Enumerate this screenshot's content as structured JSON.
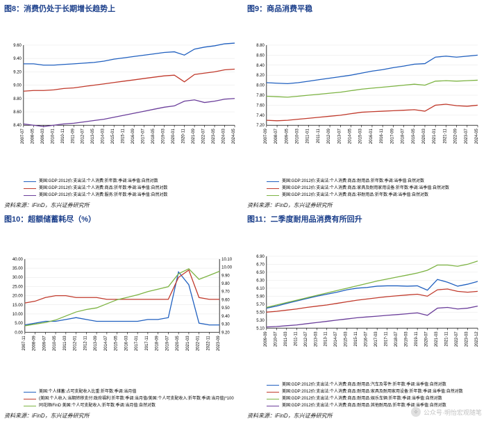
{
  "source_label": "资料来源：iFinD，东兴证券研究所",
  "watermark": "公众号·明怡宏观随笔",
  "axis_color": "#000000",
  "grid_color": "#e6e6e6",
  "tick_font_size": 6,
  "title_color": "#1b3f8b",
  "fig8": {
    "title": "图8：消费仍处于长期增长趋势上",
    "type": "line",
    "ylim": [
      8.4,
      9.6
    ],
    "ytick_step": 0.2,
    "x_labels": [
      "2007-07",
      "2008-05",
      "2009-03",
      "2010-01",
      "2010-11",
      "2011-09",
      "2012-07",
      "2013-05",
      "2014-03",
      "2015-01",
      "2015-11",
      "2016-09",
      "2017-07",
      "2018-05",
      "2019-03",
      "2020-01",
      "2020-11",
      "2021-09",
      "2022-07",
      "2023-05",
      "2024-03",
      "2024-05"
    ],
    "series": [
      {
        "name": "美国:GDP:2012价:支出法:个人消费:折年数:季调:当季值:自然对数",
        "color": "#1f5fbf",
        "y": [
          9.32,
          9.32,
          9.3,
          9.3,
          9.31,
          9.32,
          9.33,
          9.34,
          9.36,
          9.39,
          9.41,
          9.43,
          9.45,
          9.47,
          9.49,
          9.5,
          9.45,
          9.54,
          9.57,
          9.59,
          9.62,
          9.63
        ]
      },
      {
        "name": "美国:GDP:2012价:支出法:个人消费:商品:折年数:季调:当季值:自然对数",
        "color": "#c0392b",
        "y": [
          8.91,
          8.92,
          8.92,
          8.93,
          8.95,
          8.96,
          8.98,
          9.0,
          9.02,
          9.04,
          9.06,
          9.08,
          9.1,
          9.12,
          9.14,
          9.15,
          9.05,
          9.16,
          9.18,
          9.2,
          9.23,
          9.24
        ]
      },
      {
        "name": "美国:GDP:2012价:支出法:个人消费:服务:折年数:季调:当季值:自然对数",
        "color": "#6a3d9a",
        "y": [
          8.42,
          8.4,
          8.38,
          8.4,
          8.42,
          8.43,
          8.45,
          8.47,
          8.49,
          8.52,
          8.55,
          8.58,
          8.61,
          8.64,
          8.67,
          8.69,
          8.76,
          8.78,
          8.74,
          8.76,
          8.79,
          8.8
        ]
      }
    ]
  },
  "fig9": {
    "title": "图9：商品消费平稳",
    "type": "line",
    "ylim": [
      7.2,
      8.8
    ],
    "ytick_step": 0.2,
    "x_labels": [
      "2007-09",
      "2008-07",
      "2009-05",
      "2010-03",
      "2011-01",
      "2011-11",
      "2012-09",
      "2013-07",
      "2014-05",
      "2015-03",
      "2016-01",
      "2016-11",
      "2017-09",
      "2018-07",
      "2019-05",
      "2020-03",
      "2021-01",
      "2021-11",
      "2022-09",
      "2023-07",
      "2024-05"
    ],
    "series": [
      {
        "name": "美国:GDP:2012价:支出法:个人消费:商品:耐用品:折年数:季调:当季值:自然对数",
        "color": "#1f5fbf",
        "y": [
          8.05,
          8.04,
          8.03,
          8.05,
          8.08,
          8.11,
          8.14,
          8.17,
          8.2,
          8.24,
          8.28,
          8.31,
          8.35,
          8.38,
          8.42,
          8.43,
          8.56,
          8.58,
          8.56,
          8.58,
          8.6
        ]
      },
      {
        "name": "美国:GDP:2012价:支出法:个人消费:商品:家具及耐用家用设备:折年数:季调:当季值:自然对数",
        "color": "#c0392b",
        "y": [
          7.3,
          7.29,
          7.3,
          7.32,
          7.34,
          7.36,
          7.38,
          7.4,
          7.43,
          7.46,
          7.47,
          7.48,
          7.49,
          7.5,
          7.51,
          7.48,
          7.6,
          7.62,
          7.59,
          7.58,
          7.6
        ]
      },
      {
        "name": "美国:GDP:2012价:支出法:个人消费:商品:非耐用品:折年数:季调:当季值:自然对数",
        "color": "#7cb342",
        "y": [
          7.78,
          7.77,
          7.76,
          7.78,
          7.8,
          7.82,
          7.84,
          7.86,
          7.89,
          7.92,
          7.94,
          7.96,
          7.98,
          8.0,
          8.02,
          8.0,
          8.08,
          8.09,
          8.08,
          8.09,
          8.1
        ]
      }
    ]
  },
  "fig10": {
    "title": "图10：超额储蓄耗尽（%）",
    "type": "line_dual",
    "ylim_left": [
      0.0,
      40.0
    ],
    "ytick_step_left": 5.0,
    "ylim_right": [
      9.2,
      10.1
    ],
    "ytick_step_right": 0.1,
    "x_labels": [
      "2007-11",
      "2008-09",
      "2009-07",
      "2010-05",
      "2011-03",
      "2012-01",
      "2012-11",
      "2013-09",
      "2014-07",
      "2015-05",
      "2016-03",
      "2017-01",
      "2017-11",
      "2018-09",
      "2019-07",
      "2020-05",
      "2021-03",
      "2022-01",
      "2022-11",
      "2023-09"
    ],
    "series": [
      {
        "name": "美国:个人储蓄:占可支配收入比重:折年数:季调:当月值",
        "color": "#1f5fbf",
        "axis": "left",
        "y": [
          4,
          5,
          6,
          6,
          7,
          8,
          7,
          6,
          6,
          6,
          6,
          6,
          7,
          7,
          8,
          33,
          26,
          5,
          4,
          4
        ]
      },
      {
        "name": "(美国:个人收入:当期转移支付:政府福利:折年数:季调:当月值/美国:个人可支配收入:折年数:季调:当月值)*100",
        "color": "#c0392b",
        "axis": "left",
        "y": [
          16,
          17,
          19,
          20,
          20,
          19,
          19,
          19,
          18,
          18,
          18,
          18,
          18,
          18,
          18,
          30,
          34,
          19,
          18,
          18
        ]
      },
      {
        "name": "同花顺iFinD 美国:个人可支配收入:折年数:季调:当月值:自然对数",
        "color": "#7cb342",
        "axis": "right",
        "y": [
          9.28,
          9.3,
          9.32,
          9.35,
          9.4,
          9.45,
          9.48,
          9.5,
          9.55,
          9.6,
          9.63,
          9.66,
          9.7,
          9.73,
          9.76,
          9.92,
          9.98,
          9.85,
          9.9,
          9.95
        ]
      }
    ]
  },
  "fig11": {
    "title": "图11：二季度耐用品消费有所回升",
    "type": "line",
    "ylim": [
      5.1,
      6.9
    ],
    "ytick_step": 0.2,
    "x_labels": [
      "2009-09",
      "2010-07",
      "2011-03",
      "2011-11",
      "2012-07",
      "2013-03",
      "2013-11",
      "2014-07",
      "2015-03",
      "2015-11",
      "2016-07",
      "2017-03",
      "2017-11",
      "2018-07",
      "2019-03",
      "2019-11",
      "2020-07",
      "2021-03",
      "2021-11",
      "2022-07",
      "2023-03",
      "2023-12"
    ],
    "series": [
      {
        "name": "美国:GDP:2012价:支出法:个人消费:商品:耐用品:汽车及零件:折年数:季调:当季值:自然对数",
        "color": "#1f5fbf",
        "y": [
          5.6,
          5.65,
          5.72,
          5.78,
          5.84,
          5.9,
          5.95,
          6.0,
          6.06,
          6.1,
          6.12,
          6.15,
          6.16,
          6.16,
          6.15,
          6.16,
          6.05,
          6.32,
          6.25,
          6.15,
          6.2,
          6.27
        ]
      },
      {
        "name": "美国:GDP:2012价:支出法:个人消费:商品:耐用品:家具及耐用家用设备:折年数:季调:当季值:自然对数",
        "color": "#c0392b",
        "y": [
          5.5,
          5.52,
          5.55,
          5.58,
          5.62,
          5.65,
          5.68,
          5.72,
          5.76,
          5.8,
          5.83,
          5.86,
          5.89,
          5.91,
          5.93,
          5.95,
          5.9,
          6.06,
          6.08,
          6.02,
          6.0,
          6.02
        ]
      },
      {
        "name": "美国:GDP:2012价:支出法:个人消费:商品:耐用品:娱乐车辆:折年数:季调:当季值:自然对数",
        "color": "#7cb342",
        "y": [
          5.62,
          5.68,
          5.74,
          5.8,
          5.86,
          5.92,
          5.98,
          6.04,
          6.1,
          6.16,
          6.22,
          6.28,
          6.33,
          6.38,
          6.43,
          6.48,
          6.55,
          6.68,
          6.68,
          6.65,
          6.7,
          6.78
        ]
      },
      {
        "name": "美国:GDP:2012价:支出法:个人消费:商品:耐用品:其他耐用品:折年数:季调:当季值:自然对数",
        "color": "#6a3d9a",
        "y": [
          5.13,
          5.14,
          5.16,
          5.18,
          5.21,
          5.24,
          5.27,
          5.3,
          5.33,
          5.36,
          5.38,
          5.4,
          5.42,
          5.44,
          5.46,
          5.48,
          5.42,
          5.6,
          5.62,
          5.58,
          5.6,
          5.65
        ]
      }
    ]
  }
}
